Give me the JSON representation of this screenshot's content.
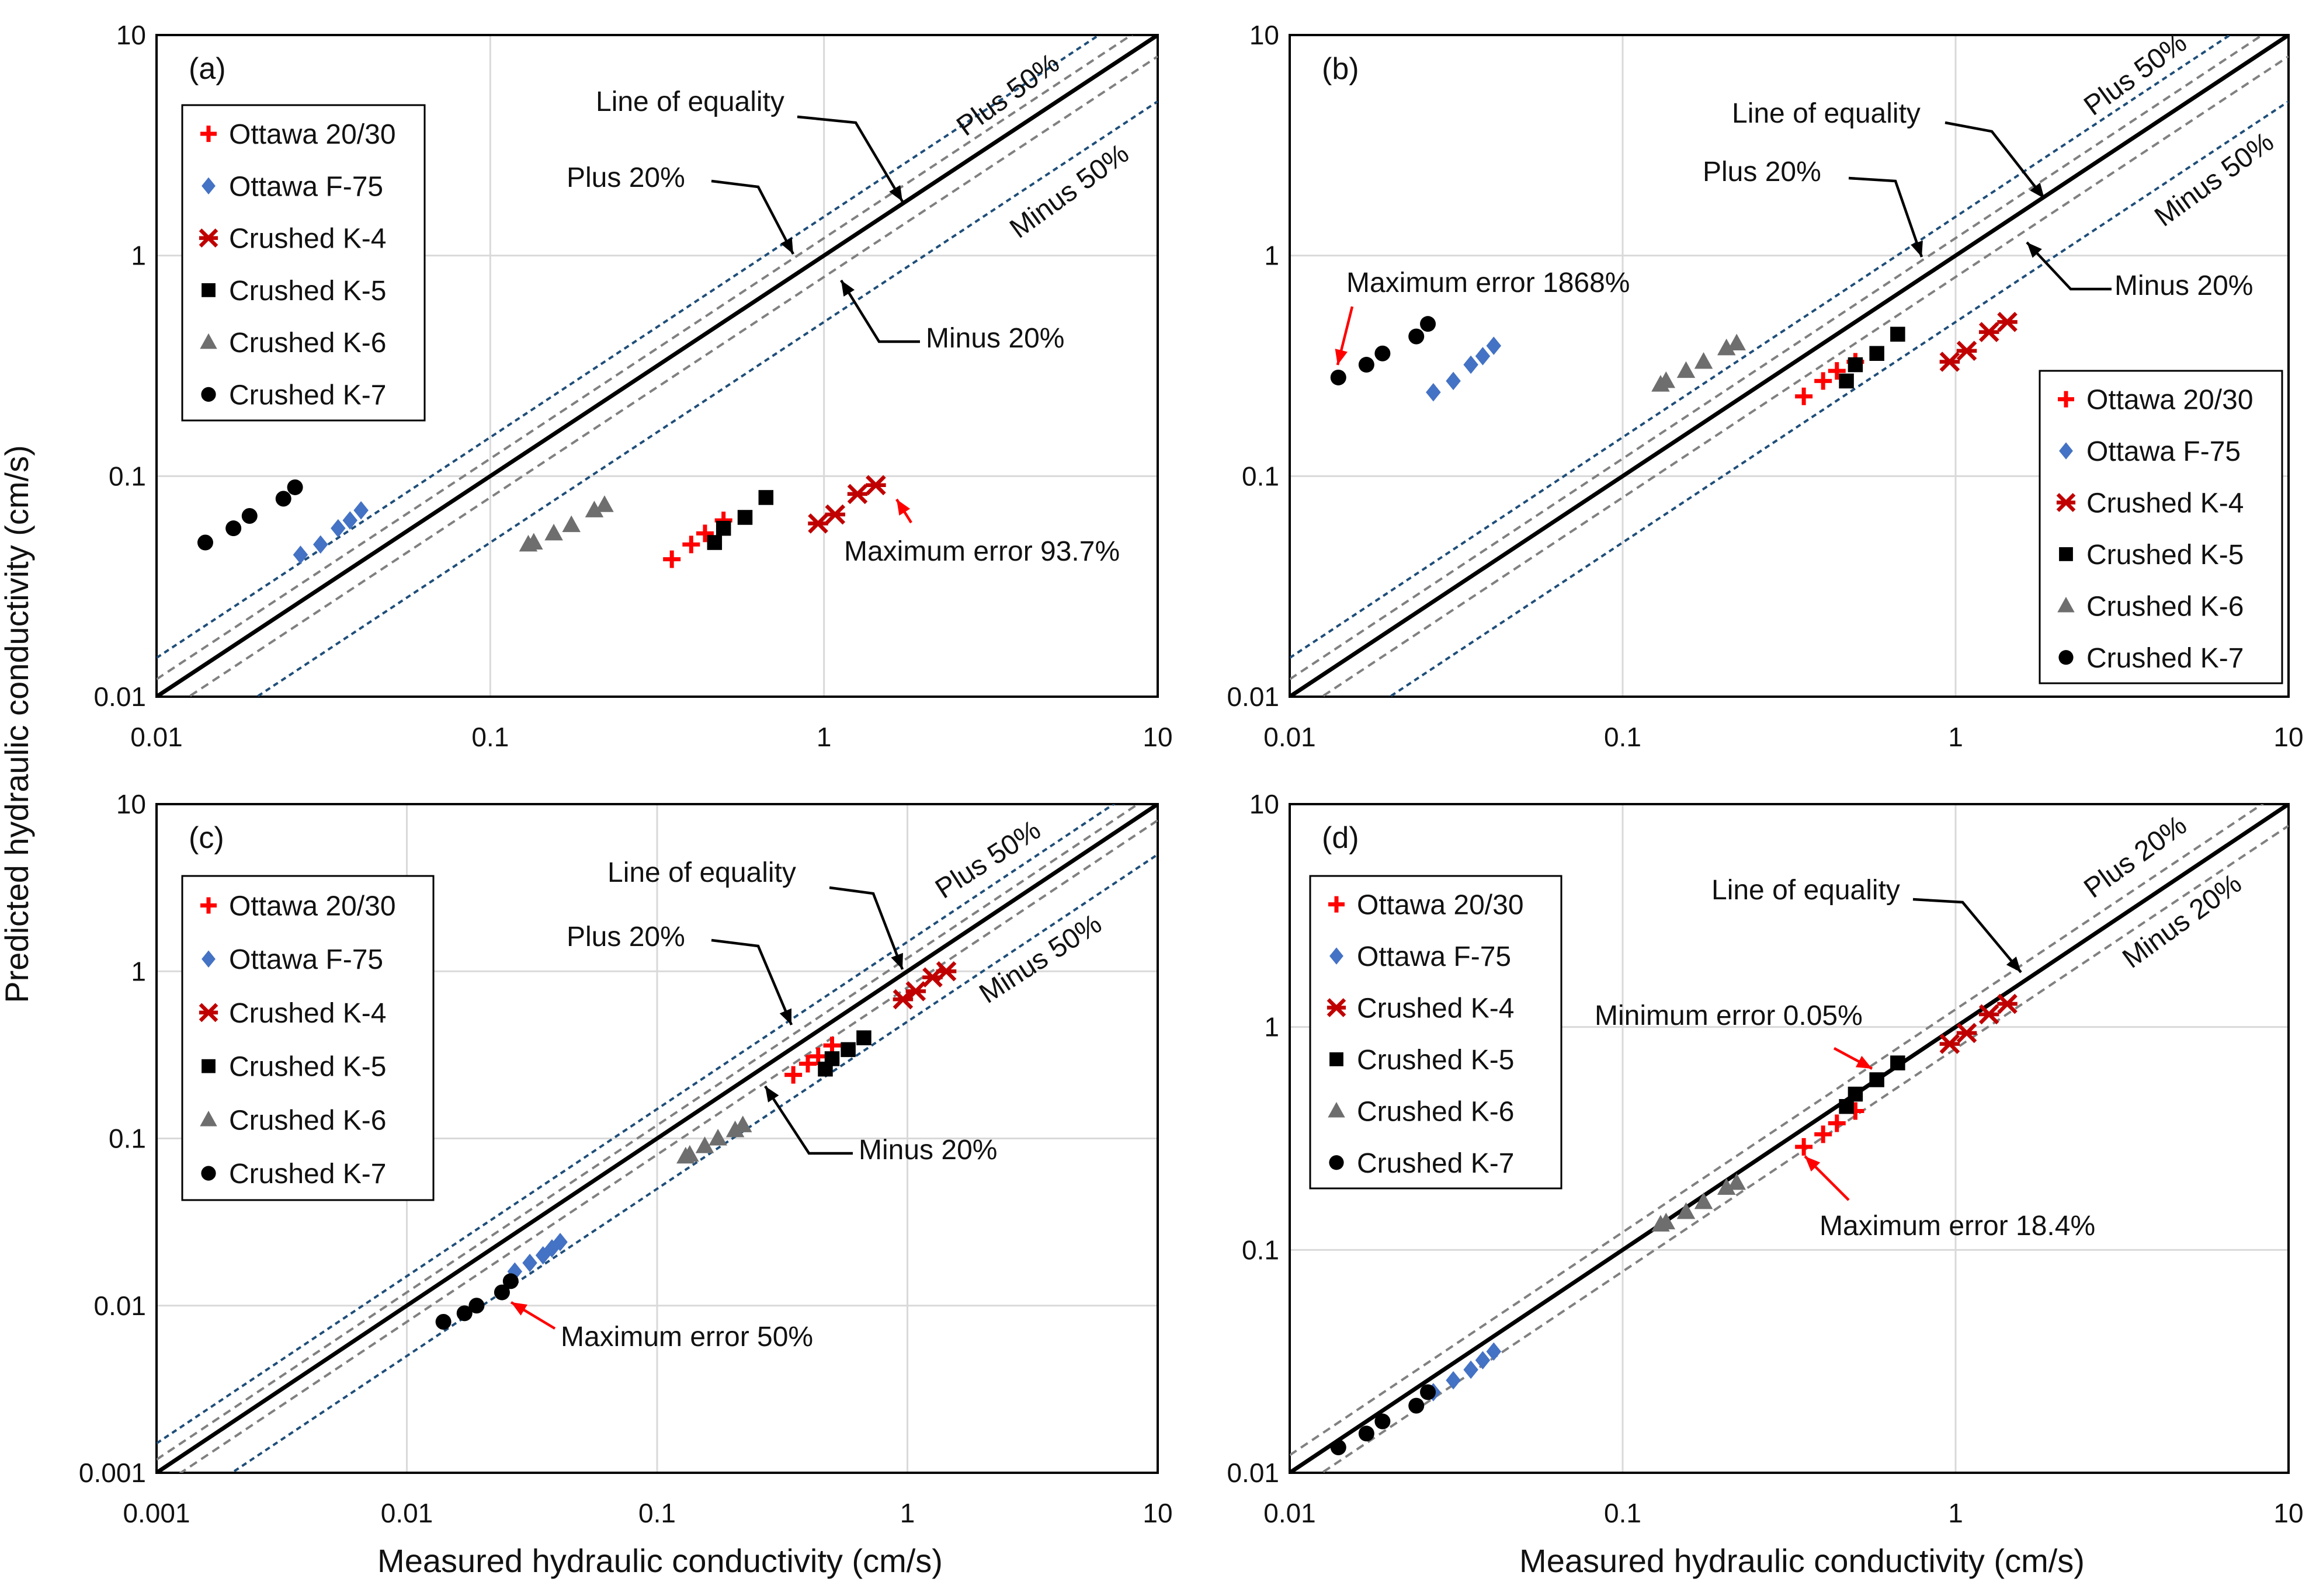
{
  "y_axis_label": "Predicted hydraulic conductivity (cm/s)",
  "x_axis_label": "Measured hydraulic conductivity (cm/s)",
  "legend_entries": [
    "Ottawa 20/30",
    "Ottawa F-75",
    "Crushed K-4",
    "Crushed K-5",
    "Crushed K-6",
    "Crushed K-7"
  ],
  "colors": {
    "ottawa_2030": "#ff0000",
    "ottawa_f75": "#4472c4",
    "crushed_k4": "#c00000",
    "crushed_k5": "#000000",
    "crushed_k6": "#6e6e6e",
    "crushed_k7": "#000000",
    "line_equality": "#000000",
    "band_20": "#808080",
    "band_50": "#1f4e79",
    "annotation_arrow": "#ff0000",
    "grid": "#d9d9d9"
  },
  "chart_data": [
    {
      "type": "scatter",
      "panel": "(a)",
      "scale": "log-log",
      "xlim": [
        0.01,
        10
      ],
      "ylim": [
        0.01,
        10
      ],
      "xticks": [
        "0.01",
        "0.1",
        "1",
        "10"
      ],
      "yticks": [
        "0.01",
        "0.1",
        "1",
        "10"
      ],
      "grid": true,
      "legend_position": "top-left",
      "reference_lines": [
        {
          "label": "Line of equality",
          "factor": 1.0
        },
        {
          "label": "Plus 20%",
          "factor": 1.2
        },
        {
          "label": "Minus 20%",
          "factor": 0.8
        },
        {
          "label": "Plus 50%",
          "factor": 1.5
        },
        {
          "label": "Minus 50%",
          "factor": 0.5
        }
      ],
      "annotations": [
        "Line of equality",
        "Plus 20%",
        "Minus 20%",
        "Plus 50%",
        "Minus 50%",
        "Maximum error 93.7%"
      ],
      "series": [
        {
          "name": "Ottawa 20/30",
          "x": [
            0.35,
            0.4,
            0.44,
            0.5
          ],
          "y": [
            0.042,
            0.049,
            0.055,
            0.063
          ]
        },
        {
          "name": "Ottawa F-75",
          "x": [
            0.027,
            0.031,
            0.035,
            0.038,
            0.041
          ],
          "y": [
            0.044,
            0.049,
            0.058,
            0.063,
            0.07
          ]
        },
        {
          "name": "Crushed K-4",
          "x": [
            0.96,
            1.08,
            1.26,
            1.43
          ],
          "y": [
            0.061,
            0.067,
            0.083,
            0.091
          ]
        },
        {
          "name": "Crushed K-5",
          "x": [
            0.47,
            0.5,
            0.58,
            0.67
          ],
          "y": [
            0.05,
            0.058,
            0.065,
            0.08
          ]
        },
        {
          "name": "Crushed K-6",
          "x": [
            0.13,
            0.135,
            0.155,
            0.175,
            0.205,
            0.22
          ],
          "y": [
            0.049,
            0.05,
            0.055,
            0.06,
            0.07,
            0.074
          ]
        },
        {
          "name": "Crushed K-7",
          "x": [
            0.014,
            0.017,
            0.019,
            0.024,
            0.026
          ],
          "y": [
            0.05,
            0.058,
            0.066,
            0.079,
            0.089
          ]
        }
      ]
    },
    {
      "type": "scatter",
      "panel": "(b)",
      "scale": "log-log",
      "xlim": [
        0.01,
        10
      ],
      "ylim": [
        0.01,
        10
      ],
      "xticks": [
        "0.01",
        "0.1",
        "1",
        "10"
      ],
      "yticks": [
        "0.01",
        "0.1",
        "1",
        "10"
      ],
      "grid": true,
      "legend_position": "bottom-right",
      "reference_lines": [
        {
          "label": "Line of equality",
          "factor": 1.0
        },
        {
          "label": "Plus 20%",
          "factor": 1.2
        },
        {
          "label": "Minus 20%",
          "factor": 0.8
        },
        {
          "label": "Plus 50%",
          "factor": 1.5
        },
        {
          "label": "Minus 50%",
          "factor": 0.5
        }
      ],
      "annotations": [
        "Line of equality",
        "Plus 20%",
        "Minus 20%",
        "Plus 50%",
        "Minus 50%",
        "Maximum error 1868%"
      ],
      "series": [
        {
          "name": "Ottawa 20/30",
          "x": [
            0.35,
            0.4,
            0.44,
            0.5
          ],
          "y": [
            0.23,
            0.27,
            0.3,
            0.33
          ]
        },
        {
          "name": "Ottawa F-75",
          "x": [
            0.027,
            0.031,
            0.035,
            0.038,
            0.041
          ],
          "y": [
            0.24,
            0.27,
            0.32,
            0.35,
            0.39
          ]
        },
        {
          "name": "Crushed K-4",
          "x": [
            0.96,
            1.08,
            1.26,
            1.43
          ],
          "y": [
            0.33,
            0.37,
            0.45,
            0.5
          ]
        },
        {
          "name": "Crushed K-5",
          "x": [
            0.47,
            0.5,
            0.58,
            0.67
          ],
          "y": [
            0.27,
            0.32,
            0.36,
            0.44
          ]
        },
        {
          "name": "Crushed K-6",
          "x": [
            0.13,
            0.135,
            0.155,
            0.175,
            0.205,
            0.22
          ],
          "y": [
            0.26,
            0.27,
            0.3,
            0.33,
            0.38,
            0.4
          ]
        },
        {
          "name": "Crushed K-7",
          "x": [
            0.014,
            0.017,
            0.019,
            0.024,
            0.026
          ],
          "y": [
            0.28,
            0.32,
            0.36,
            0.43,
            0.49
          ]
        }
      ]
    },
    {
      "type": "scatter",
      "panel": "(c)",
      "scale": "log-log",
      "xlim": [
        0.001,
        10
      ],
      "ylim": [
        0.001,
        10
      ],
      "xticks": [
        "0.001",
        "0.01",
        "0.1",
        "1",
        "10"
      ],
      "yticks": [
        "0.001",
        "0.01",
        "0.1",
        "1",
        "10"
      ],
      "grid": true,
      "legend_position": "top-left",
      "reference_lines": [
        {
          "label": "Line of equality",
          "factor": 1.0
        },
        {
          "label": "Plus 20%",
          "factor": 1.2
        },
        {
          "label": "Minus 20%",
          "factor": 0.8
        },
        {
          "label": "Plus 50%",
          "factor": 1.5
        },
        {
          "label": "Minus 50%",
          "factor": 0.5
        }
      ],
      "annotations": [
        "Line of equality",
        "Plus 20%",
        "Minus 20%",
        "Plus 50%",
        "Minus 50%",
        "Maximum error 50%"
      ],
      "series": [
        {
          "name": "Ottawa 20/30",
          "x": [
            0.35,
            0.4,
            0.44,
            0.5
          ],
          "y": [
            0.24,
            0.28,
            0.31,
            0.36
          ]
        },
        {
          "name": "Ottawa F-75",
          "x": [
            0.027,
            0.031,
            0.035,
            0.038,
            0.041
          ],
          "y": [
            0.016,
            0.018,
            0.02,
            0.022,
            0.024
          ]
        },
        {
          "name": "Crushed K-4",
          "x": [
            0.96,
            1.08,
            1.26,
            1.43
          ],
          "y": [
            0.68,
            0.76,
            0.92,
            1.0
          ]
        },
        {
          "name": "Crushed K-5",
          "x": [
            0.47,
            0.5,
            0.58,
            0.67
          ],
          "y": [
            0.26,
            0.3,
            0.34,
            0.4
          ]
        },
        {
          "name": "Crushed K-6",
          "x": [
            0.13,
            0.135,
            0.155,
            0.175,
            0.205,
            0.22
          ],
          "y": [
            0.078,
            0.08,
            0.09,
            0.1,
            0.112,
            0.12
          ]
        },
        {
          "name": "Crushed K-7",
          "x": [
            0.014,
            0.017,
            0.019,
            0.024,
            0.026
          ],
          "y": [
            0.008,
            0.009,
            0.01,
            0.012,
            0.014
          ]
        }
      ]
    },
    {
      "type": "scatter",
      "panel": "(d)",
      "scale": "log-log",
      "xlim": [
        0.01,
        10
      ],
      "ylim": [
        0.01,
        10
      ],
      "xticks": [
        "0.01",
        "0.1",
        "1",
        "10"
      ],
      "yticks": [
        "0.01",
        "0.1",
        "1",
        "10"
      ],
      "grid": true,
      "legend_position": "top-left",
      "reference_lines": [
        {
          "label": "Line of equality",
          "factor": 1.0
        },
        {
          "label": "Plus 20%",
          "factor": 1.2
        },
        {
          "label": "Minus 20%",
          "factor": 0.8
        }
      ],
      "annotations": [
        "Line of equality",
        "Plus 20%",
        "Minus 20%",
        "Minimum error 0.05%",
        "Maximum error 18.4%"
      ],
      "series": [
        {
          "name": "Ottawa 20/30",
          "x": [
            0.35,
            0.4,
            0.44,
            0.5
          ],
          "y": [
            0.29,
            0.33,
            0.37,
            0.42
          ]
        },
        {
          "name": "Ottawa F-75",
          "x": [
            0.027,
            0.031,
            0.035,
            0.038,
            0.041
          ],
          "y": [
            0.023,
            0.026,
            0.029,
            0.032,
            0.035
          ]
        },
        {
          "name": "Crushed K-4",
          "x": [
            0.96,
            1.08,
            1.26,
            1.43
          ],
          "y": [
            0.84,
            0.94,
            1.14,
            1.27
          ]
        },
        {
          "name": "Crushed K-5",
          "x": [
            0.47,
            0.5,
            0.58,
            0.67
          ],
          "y": [
            0.44,
            0.5,
            0.58,
            0.69
          ]
        },
        {
          "name": "Crushed K-6",
          "x": [
            0.13,
            0.135,
            0.155,
            0.175,
            0.205,
            0.22
          ],
          "y": [
            0.13,
            0.133,
            0.148,
            0.164,
            0.19,
            0.2
          ]
        },
        {
          "name": "Crushed K-7",
          "x": [
            0.014,
            0.017,
            0.019,
            0.024,
            0.026
          ],
          "y": [
            0.013,
            0.015,
            0.017,
            0.02,
            0.023
          ]
        }
      ]
    }
  ]
}
